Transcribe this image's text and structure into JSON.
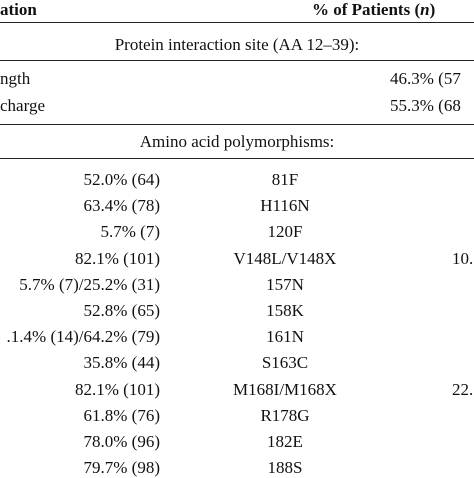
{
  "header": {
    "left": "ation",
    "right": [
      "% of Patients (",
      "n",
      ")"
    ]
  },
  "sections": [
    {
      "title": "Protein interaction site (AA 12–39):",
      "rows": [
        [
          "ngth",
          "46.3% (57"
        ],
        [
          "charge",
          "55.3% (68"
        ]
      ]
    },
    {
      "title": "Amino acid polymorphisms:",
      "rows": [
        [
          "52.0% (64)",
          "81F",
          ""
        ],
        [
          "63.4% (78)",
          "H116N",
          ""
        ],
        [
          "5.7% (7)",
          "120F",
          ""
        ],
        [
          "82.1% (101)",
          "V148L/V148X",
          "10."
        ],
        [
          "5.7% (7)/25.2% (31)",
          "157N",
          ""
        ],
        [
          "52.8% (65)",
          "158K",
          ""
        ],
        [
          ".1.4% (14)/64.2% (79)",
          "161N",
          ""
        ],
        [
          "35.8% (44)",
          "S163C",
          ""
        ],
        [
          "82.1% (101)",
          "M168I/M168X",
          "22."
        ],
        [
          "61.8% (76)",
          "R178G",
          ""
        ],
        [
          "78.0% (96)",
          "182E",
          ""
        ],
        [
          "79.7% (98)",
          "188S",
          ""
        ]
      ]
    }
  ]
}
